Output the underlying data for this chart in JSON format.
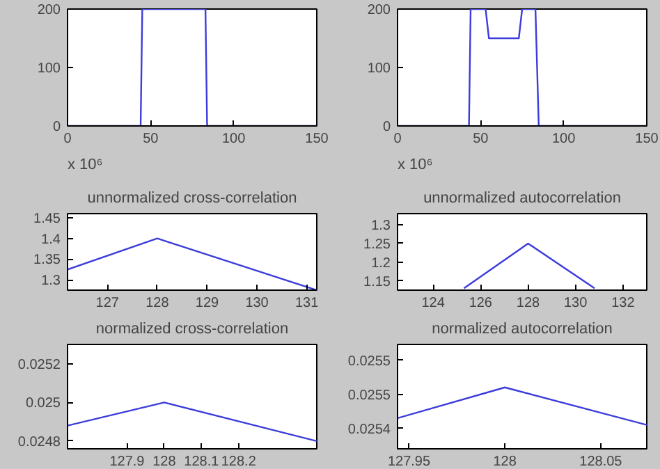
{
  "chart_data": [
    {
      "type": "line",
      "x": [
        0,
        44,
        45,
        83,
        84,
        150
      ],
      "values": [
        0,
        0,
        200,
        200,
        0,
        0
      ],
      "color": "#3c3cdc",
      "xlim": [
        0,
        150
      ],
      "ylim": [
        0,
        200
      ],
      "xticks": [
        0,
        50,
        100,
        150
      ],
      "yticks": [
        0,
        100,
        200
      ],
      "grid": false
    },
    {
      "type": "line",
      "x": [
        0,
        43,
        44,
        53,
        55,
        73,
        75,
        83,
        85,
        150
      ],
      "values": [
        0,
        0,
        200,
        200,
        150,
        150,
        200,
        200,
        0,
        0
      ],
      "color": "#3c3cdc",
      "xlim": [
        0,
        150
      ],
      "ylim": [
        0,
        200
      ],
      "xticks": [
        0,
        50,
        100,
        150
      ],
      "yticks": [
        0,
        100,
        200
      ],
      "grid": false
    },
    {
      "type": "line",
      "title": "unnormalized cross-correlation",
      "annotations": [
        "x 10⁶"
      ],
      "x": [
        126.2,
        128,
        131.2
      ],
      "values": [
        1.325,
        1.4,
        1.275
      ],
      "color": "#3c3cdc",
      "xlim": [
        126.2,
        131.2
      ],
      "ylim": [
        1.275,
        1.46
      ],
      "xticks": [
        127,
        128,
        129,
        130,
        131
      ],
      "yticks": [
        1.3,
        1.35,
        1.4,
        1.45
      ],
      "grid": false
    },
    {
      "type": "line",
      "title": "unnormalized autocorrelation",
      "annotations": [
        "x 10⁶"
      ],
      "x": [
        125.3,
        128,
        130.8
      ],
      "values": [
        1.13,
        1.25,
        1.13
      ],
      "color": "#3c3cdc",
      "xlim": [
        122.5,
        133
      ],
      "ylim": [
        1.125,
        1.33
      ],
      "xticks": [
        124,
        126,
        128,
        130,
        132
      ],
      "yticks": [
        1.15,
        1.2,
        1.25,
        1.3
      ],
      "grid": false
    },
    {
      "type": "line",
      "title": "normalized cross-correlation",
      "x": [
        127.74,
        128,
        128.41
      ],
      "values": [
        0.02488,
        0.025,
        0.0248
      ],
      "color": "#3c3cdc",
      "xlim": [
        127.74,
        128.41
      ],
      "ylim": [
        0.02476,
        0.0253
      ],
      "xticks": [
        127.9,
        128,
        128.1,
        128.2
      ],
      "yticks": [
        0.0248,
        0.025,
        0.0252
      ],
      "grid": false
    },
    {
      "type": "line",
      "title": "normalized autocorrelation",
      "x": [
        127.944,
        128,
        128.074
      ],
      "values": [
        0.025465,
        0.02551,
        0.025455
      ],
      "color": "#3c3cdc",
      "xlim": [
        127.944,
        128.074
      ],
      "ylim": [
        0.02542,
        0.025573
      ],
      "xticks": [
        127.95,
        128,
        128.05
      ],
      "yticks": [
        {
          "value": 0.02545,
          "label": "0.0254"
        },
        {
          "value": 0.0255,
          "label": "0.0255"
        },
        {
          "value": 0.02555,
          "label": "0.0255"
        }
      ],
      "grid": false
    }
  ]
}
